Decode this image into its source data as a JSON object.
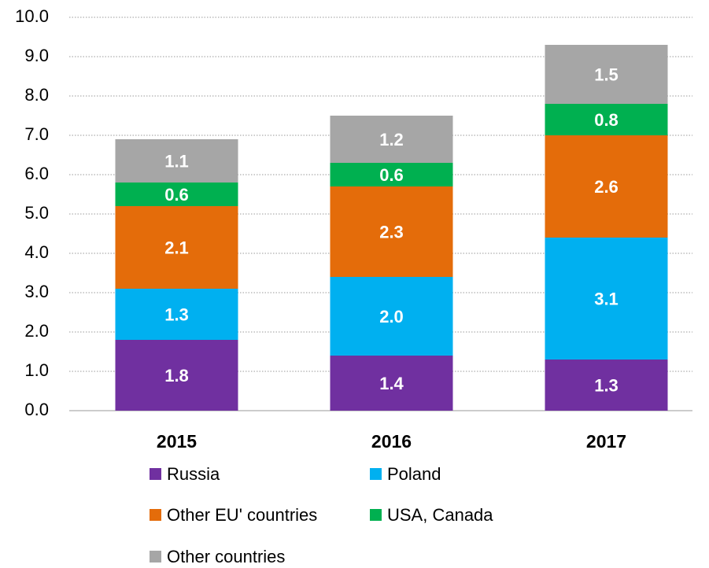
{
  "chart_data": {
    "type": "stacked_bar",
    "categories": [
      "2015",
      "2016",
      "2017"
    ],
    "series": [
      {
        "name": "Russia",
        "color": "#7030a0",
        "values": [
          1.8,
          1.4,
          1.3
        ],
        "value_labels": [
          "1.8",
          "1.4",
          "1.3"
        ]
      },
      {
        "name": "Poland",
        "color": "#00b0f0",
        "values": [
          1.3,
          2.0,
          3.1
        ],
        "value_labels": [
          "1.3",
          "2.0",
          "3.1"
        ]
      },
      {
        "name": "Other EU' countries",
        "color": "#e46c0a",
        "values": [
          2.1,
          2.3,
          2.6
        ],
        "value_labels": [
          "2.1",
          "2.3",
          "2.6"
        ]
      },
      {
        "name": "USA, Canada",
        "color": "#00b050",
        "values": [
          0.6,
          0.6,
          0.8
        ],
        "value_labels": [
          "0.6",
          "0.6",
          "0.8"
        ]
      },
      {
        "name": "Other countries",
        "color": "#a6a6a6",
        "values": [
          1.1,
          1.2,
          1.5
        ],
        "value_labels": [
          "1.1",
          "1.2",
          "1.5"
        ]
      }
    ],
    "ylim": [
      0,
      10
    ],
    "yticks": [
      {
        "value": 0,
        "label": "0.0"
      },
      {
        "value": 1,
        "label": "1.0"
      },
      {
        "value": 2,
        "label": "2.0"
      },
      {
        "value": 3,
        "label": "3.0"
      },
      {
        "value": 4,
        "label": "4.0"
      },
      {
        "value": 5,
        "label": "5.0"
      },
      {
        "value": 6,
        "label": "6.0"
      },
      {
        "value": 7,
        "label": "7.0"
      },
      {
        "value": 8,
        "label": "8.0"
      },
      {
        "value": 9,
        "label": "9.0"
      },
      {
        "value": 10,
        "label": "10.0"
      }
    ],
    "grid": true
  }
}
